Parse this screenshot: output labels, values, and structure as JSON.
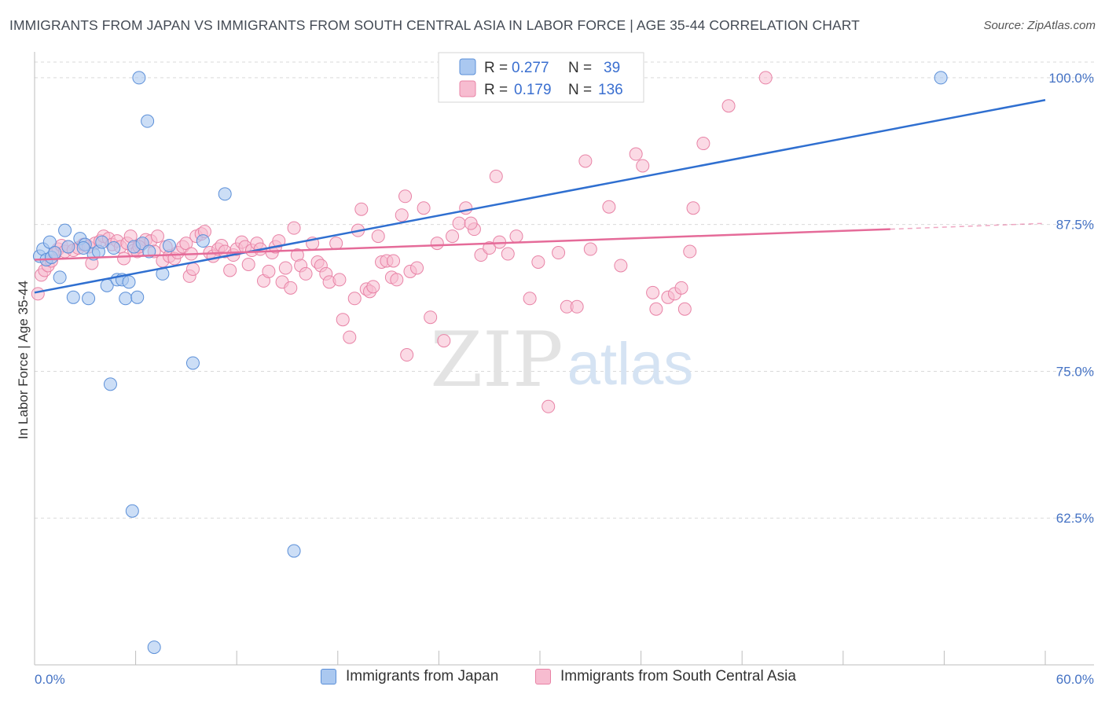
{
  "title": "IMMIGRANTS FROM JAPAN VS IMMIGRANTS FROM SOUTH CENTRAL ASIA IN LABOR FORCE | AGE 35-44 CORRELATION CHART",
  "source": "Source: ZipAtlas.com",
  "watermark": {
    "zip": "ZIP",
    "atlas": "atlas"
  },
  "colors": {
    "japan_fill": "#aac8f0",
    "japan_stroke": "#5b8fd8",
    "japan_line": "#2f6fd0",
    "sca_fill": "#f7bcd0",
    "sca_stroke": "#e883a6",
    "sca_line": "#e56b99",
    "axis_label": "#4472c4",
    "grid": "#d9d9d9"
  },
  "legend": {
    "r_label": "R =",
    "n_label": "N =",
    "japan": {
      "r": "0.277",
      "n": "39"
    },
    "sca": {
      "r": "0.179",
      "n": "136"
    }
  },
  "bottom_legend": {
    "japan": "Immigrants from Japan",
    "sca": "Immigrants from South Central Asia"
  },
  "chart_data": {
    "type": "scatter",
    "title": "IMMIGRANTS FROM JAPAN VS IMMIGRANTS FROM SOUTH CENTRAL ASIA IN LABOR FORCE | AGE 35-44 CORRELATION CHART",
    "xlabel": "",
    "ylabel": "In Labor Force | Age 35-44",
    "xlim": [
      0,
      60
    ],
    "ylim": [
      50,
      102
    ],
    "x_tick_labels": [
      "0.0%",
      "60.0%"
    ],
    "y_ticks": [
      62.5,
      75.0,
      87.5,
      100.0
    ],
    "y_tick_labels": [
      "62.5%",
      "75.0%",
      "87.5%",
      "100.0%"
    ],
    "grid": "horizontal dashed",
    "series": [
      {
        "name": "Immigrants from Japan",
        "r": 0.277,
        "n": 39,
        "trend": {
          "x": [
            0,
            60
          ],
          "y": [
            81.7,
            98.1
          ]
        },
        "points": [
          [
            0.3,
            84.8
          ],
          [
            0.5,
            85.4
          ],
          [
            0.7,
            84.5
          ],
          [
            0.9,
            86.0
          ],
          [
            1.0,
            84.7
          ],
          [
            1.5,
            83.0
          ],
          [
            1.8,
            87.0
          ],
          [
            2.0,
            85.6
          ],
          [
            2.3,
            81.3
          ],
          [
            2.7,
            86.3
          ],
          [
            3.0,
            85.8
          ],
          [
            3.2,
            81.2
          ],
          [
            3.5,
            85.0
          ],
          [
            3.8,
            85.2
          ],
          [
            4.0,
            86.0
          ],
          [
            4.3,
            82.3
          ],
          [
            4.7,
            85.5
          ],
          [
            4.9,
            82.8
          ],
          [
            5.2,
            82.8
          ],
          [
            5.4,
            81.2
          ],
          [
            5.6,
            82.6
          ],
          [
            5.9,
            85.6
          ],
          [
            6.1,
            81.3
          ],
          [
            6.4,
            85.9
          ],
          [
            7.6,
            83.3
          ],
          [
            6.2,
            100.0
          ],
          [
            6.7,
            96.3
          ],
          [
            11.3,
            90.1
          ],
          [
            9.4,
            75.7
          ],
          [
            4.5,
            73.9
          ],
          [
            5.8,
            63.1
          ],
          [
            15.4,
            59.7
          ],
          [
            7.1,
            51.5
          ],
          [
            53.8,
            100.0
          ],
          [
            10.0,
            86.1
          ],
          [
            8.0,
            85.7
          ],
          [
            1.2,
            85.1
          ],
          [
            2.9,
            85.5
          ],
          [
            6.8,
            85.2
          ]
        ]
      },
      {
        "name": "Immigrants from South Central Asia",
        "r": 0.179,
        "n": 136,
        "trend": {
          "x": [
            0,
            50.8
          ],
          "y": [
            84.5,
            87.1
          ]
        },
        "trend_dashed": {
          "x": [
            50.8,
            60
          ],
          "y": [
            87.1,
            87.6
          ]
        },
        "points": [
          [
            0.2,
            81.6
          ],
          [
            0.4,
            83.2
          ],
          [
            0.6,
            83.6
          ],
          [
            0.8,
            84.0
          ],
          [
            1.0,
            84.4
          ],
          [
            1.2,
            85.0
          ],
          [
            1.4,
            85.4
          ],
          [
            1.6,
            85.7
          ],
          [
            1.8,
            85.2
          ],
          [
            2.0,
            85.6
          ],
          [
            2.3,
            85.3
          ],
          [
            2.6,
            85.5
          ],
          [
            2.9,
            85.8
          ],
          [
            3.2,
            85.6
          ],
          [
            3.4,
            84.2
          ],
          [
            3.6,
            85.9
          ],
          [
            3.9,
            86.1
          ],
          [
            4.1,
            86.5
          ],
          [
            4.4,
            86.3
          ],
          [
            4.6,
            85.8
          ],
          [
            4.9,
            86.1
          ],
          [
            5.1,
            85.6
          ],
          [
            5.3,
            84.6
          ],
          [
            5.5,
            85.9
          ],
          [
            5.7,
            86.5
          ],
          [
            5.9,
            85.3
          ],
          [
            6.1,
            85.2
          ],
          [
            6.3,
            85.8
          ],
          [
            6.6,
            86.2
          ],
          [
            6.9,
            86.1
          ],
          [
            7.1,
            85.2
          ],
          [
            7.3,
            86.5
          ],
          [
            7.6,
            84.4
          ],
          [
            7.8,
            85.6
          ],
          [
            8.0,
            84.8
          ],
          [
            8.3,
            84.6
          ],
          [
            8.5,
            85.1
          ],
          [
            8.8,
            85.6
          ],
          [
            9.0,
            85.9
          ],
          [
            9.2,
            83.1
          ],
          [
            9.4,
            83.7
          ],
          [
            9.6,
            86.5
          ],
          [
            9.9,
            86.7
          ],
          [
            10.1,
            86.9
          ],
          [
            10.4,
            85.1
          ],
          [
            10.6,
            84.8
          ],
          [
            10.9,
            85.4
          ],
          [
            11.1,
            85.7
          ],
          [
            11.3,
            85.2
          ],
          [
            11.6,
            83.6
          ],
          [
            11.8,
            84.9
          ],
          [
            12.0,
            85.4
          ],
          [
            12.3,
            86.0
          ],
          [
            12.5,
            85.6
          ],
          [
            12.7,
            84.1
          ],
          [
            12.9,
            85.3
          ],
          [
            13.2,
            85.9
          ],
          [
            13.4,
            85.4
          ],
          [
            13.6,
            82.7
          ],
          [
            13.9,
            83.5
          ],
          [
            14.1,
            85.1
          ],
          [
            14.3,
            85.6
          ],
          [
            14.5,
            86.1
          ],
          [
            14.7,
            82.6
          ],
          [
            14.9,
            83.8
          ],
          [
            15.2,
            82.1
          ],
          [
            15.4,
            87.2
          ],
          [
            15.6,
            84.9
          ],
          [
            15.8,
            84.0
          ],
          [
            16.1,
            83.3
          ],
          [
            16.5,
            85.9
          ],
          [
            16.8,
            84.3
          ],
          [
            17.0,
            84.0
          ],
          [
            17.3,
            83.3
          ],
          [
            17.5,
            82.6
          ],
          [
            17.9,
            85.9
          ],
          [
            18.1,
            82.8
          ],
          [
            18.3,
            79.4
          ],
          [
            18.7,
            77.9
          ],
          [
            19.0,
            81.2
          ],
          [
            19.2,
            87.0
          ],
          [
            19.4,
            88.8
          ],
          [
            19.7,
            82.0
          ],
          [
            19.9,
            81.8
          ],
          [
            20.1,
            82.2
          ],
          [
            20.4,
            86.5
          ],
          [
            20.6,
            84.3
          ],
          [
            20.9,
            84.4
          ],
          [
            21.2,
            83.0
          ],
          [
            21.5,
            82.8
          ],
          [
            21.8,
            88.3
          ],
          [
            22.0,
            89.9
          ],
          [
            22.3,
            83.5
          ],
          [
            22.7,
            83.8
          ],
          [
            23.1,
            88.9
          ],
          [
            23.5,
            79.6
          ],
          [
            23.9,
            85.9
          ],
          [
            24.3,
            77.6
          ],
          [
            24.8,
            86.5
          ],
          [
            25.2,
            87.6
          ],
          [
            25.6,
            88.9
          ],
          [
            26.1,
            87.1
          ],
          [
            26.5,
            84.9
          ],
          [
            27.0,
            85.5
          ],
          [
            27.4,
            91.6
          ],
          [
            27.6,
            86.0
          ],
          [
            28.1,
            85.0
          ],
          [
            28.6,
            86.5
          ],
          [
            29.4,
            81.2
          ],
          [
            29.9,
            84.3
          ],
          [
            30.5,
            72.0
          ],
          [
            31.1,
            85.1
          ],
          [
            31.6,
            80.5
          ],
          [
            32.2,
            80.5
          ],
          [
            32.7,
            92.9
          ],
          [
            33.0,
            85.4
          ],
          [
            34.1,
            89.0
          ],
          [
            34.8,
            84.0
          ],
          [
            35.7,
            93.5
          ],
          [
            36.1,
            92.5
          ],
          [
            36.7,
            81.7
          ],
          [
            36.9,
            80.3
          ],
          [
            37.6,
            81.3
          ],
          [
            38.0,
            81.6
          ],
          [
            38.4,
            82.1
          ],
          [
            38.6,
            80.3
          ],
          [
            38.9,
            85.2
          ],
          [
            39.1,
            88.9
          ],
          [
            39.7,
            94.4
          ],
          [
            41.2,
            97.6
          ],
          [
            43.4,
            100.0
          ],
          [
            22.1,
            76.4
          ],
          [
            21.3,
            84.4
          ],
          [
            25.9,
            87.6
          ],
          [
            6.2,
            85.6
          ],
          [
            9.3,
            85.0
          ]
        ]
      }
    ]
  }
}
